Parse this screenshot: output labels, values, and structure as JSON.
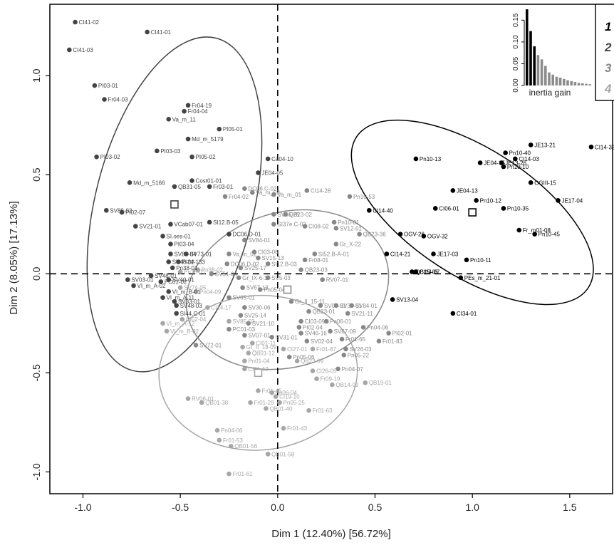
{
  "chart_data": {
    "type": "scatter",
    "title": "",
    "xlabel": "Dim 1 (12.40%) [56.72%]",
    "ylabel": "Dim 2 (8.05%) [17.13%]",
    "xlim": [
      -1.17,
      1.72
    ],
    "ylim": [
      -1.11,
      1.36
    ],
    "xticks": [
      "-1.0",
      "-0.5",
      "0.0",
      "0.5",
      "1.0",
      "1.5"
    ],
    "yticks": [
      "-1.0",
      "-0.5",
      "0.0",
      "0.5",
      "1.0"
    ],
    "xtick_values": [
      -1.0,
      -0.5,
      0.0,
      0.5,
      1.0,
      1.5
    ],
    "ytick_values": [
      -1.0,
      -0.5,
      0.0,
      0.5,
      1.0
    ],
    "reference_lines": {
      "x": 0,
      "y": 0,
      "style": "dashed"
    },
    "group_colors": {
      "1": "#000000",
      "2": "#444444",
      "3": "#888888",
      "4": "#a6a6a6"
    },
    "legend": {
      "placement": "top-right",
      "items": [
        "1",
        "2",
        "3",
        "4"
      ]
    },
    "centroids": [
      {
        "group": "1",
        "x": 1.0,
        "y": 0.31
      },
      {
        "group": "2",
        "x": -0.53,
        "y": 0.35
      },
      {
        "group": "3",
        "x": 0.05,
        "y": -0.08
      },
      {
        "group": "4",
        "x": -0.1,
        "y": -0.5
      }
    ],
    "ellipses": [
      {
        "group": "1",
        "cx": 1.0,
        "cy": 0.31,
        "rx": 0.71,
        "ry": 0.32,
        "angle": 33
      },
      {
        "group": "2",
        "cx": -0.53,
        "cy": 0.35,
        "rx": 0.88,
        "ry": 0.4,
        "angle": -76
      },
      {
        "group": "3",
        "cx": 0.05,
        "cy": -0.08,
        "rx": 0.53,
        "ry": 0.39,
        "angle": -17
      },
      {
        "group": "4",
        "cx": -0.1,
        "cy": -0.5,
        "rx": 0.51,
        "ry": 0.39,
        "angle": -4
      }
    ],
    "inset": {
      "title": "inertia gain",
      "yticks": [
        "0.00",
        "0.05",
        "0.10",
        "0.15"
      ],
      "ytick_values": [
        0,
        0.05,
        0.1,
        0.15
      ],
      "bars": [
        0.175,
        0.125,
        0.09,
        0.07,
        0.06,
        0.045,
        0.03,
        0.025,
        0.02,
        0.018,
        0.015,
        0.012,
        0.01,
        0.008,
        0.006,
        0.005,
        0.004,
        0.003
      ],
      "highlighted_count": 3
    },
    "points": [
      {
        "label": "CI14-32",
        "x": 1.61,
        "y": 0.64,
        "group": "1"
      },
      {
        "label": "JE13-21",
        "x": 1.3,
        "y": 0.65,
        "group": "1"
      },
      {
        "label": "Pn10-40",
        "x": 1.17,
        "y": 0.61,
        "group": "1"
      },
      {
        "label": "JE13-26",
        "x": 1.15,
        "y": 0.56,
        "group": "1"
      },
      {
        "label": "CI14-03",
        "x": 1.22,
        "y": 0.58,
        "group": "1"
      },
      {
        "label": "JE04-15",
        "x": 1.04,
        "y": 0.56,
        "group": "1"
      },
      {
        "label": "Pn10-10",
        "x": 1.16,
        "y": 0.54,
        "group": "1"
      },
      {
        "label": "Pn10-13",
        "x": 0.71,
        "y": 0.58,
        "group": "1"
      },
      {
        "label": "OGIII-15",
        "x": 1.3,
        "y": 0.46,
        "group": "1"
      },
      {
        "label": "JE04-13",
        "x": 0.9,
        "y": 0.42,
        "group": "1"
      },
      {
        "label": "JE17-04",
        "x": 1.44,
        "y": 0.37,
        "group": "1"
      },
      {
        "label": "Pn10-12",
        "x": 1.02,
        "y": 0.37,
        "group": "1"
      },
      {
        "label": "CI06-01",
        "x": 0.81,
        "y": 0.33,
        "group": "1"
      },
      {
        "label": "Pn10-35",
        "x": 1.16,
        "y": 0.33,
        "group": "1"
      },
      {
        "label": "CI14-40",
        "x": 0.47,
        "y": 0.32,
        "group": "1"
      },
      {
        "label": "Fr_m01-08",
        "x": 1.24,
        "y": 0.22,
        "group": "1"
      },
      {
        "label": "Pn10-45",
        "x": 1.32,
        "y": 0.2,
        "group": "1"
      },
      {
        "label": "OGV-26",
        "x": 0.63,
        "y": 0.2,
        "group": "1"
      },
      {
        "label": "OGV-32",
        "x": 0.75,
        "y": 0.19,
        "group": "1"
      },
      {
        "label": "CI14-21",
        "x": 0.56,
        "y": 0.1,
        "group": "1"
      },
      {
        "label": "JE17-03",
        "x": 0.8,
        "y": 0.1,
        "group": "1"
      },
      {
        "label": "Pn10-11",
        "x": 0.97,
        "y": 0.07,
        "group": "1"
      },
      {
        "label": "CI14-07",
        "x": 0.71,
        "y": 0.01,
        "group": "1"
      },
      {
        "label": "QB15-05",
        "x": 0.69,
        "y": 0.01,
        "group": "1"
      },
      {
        "label": "PEs_m_21-01",
        "x": 0.94,
        "y": -0.02,
        "group": "1"
      },
      {
        "label": "SV13-04",
        "x": 0.59,
        "y": -0.13,
        "group": "1"
      },
      {
        "label": "CI34-01",
        "x": 0.9,
        "y": -0.2,
        "group": "1"
      },
      {
        "label": "CI41-02",
        "x": -1.04,
        "y": 1.27,
        "group": "2"
      },
      {
        "label": "CI41-01",
        "x": -0.67,
        "y": 1.22,
        "group": "2"
      },
      {
        "label": "CI41-03",
        "x": -1.07,
        "y": 1.13,
        "group": "2"
      },
      {
        "label": "PI03-01",
        "x": -0.94,
        "y": 0.95,
        "group": "2"
      },
      {
        "label": "Fr04-03",
        "x": -0.89,
        "y": 0.88,
        "group": "2"
      },
      {
        "label": "Fr04-19",
        "x": -0.46,
        "y": 0.85,
        "group": "2"
      },
      {
        "label": "Fr04-04",
        "x": -0.48,
        "y": 0.82,
        "group": "2"
      },
      {
        "label": "Va_m_11",
        "x": -0.56,
        "y": 0.78,
        "group": "2"
      },
      {
        "label": "PI05-01",
        "x": -0.3,
        "y": 0.73,
        "group": "2"
      },
      {
        "label": "Md_m_5179",
        "x": -0.46,
        "y": 0.68,
        "group": "2"
      },
      {
        "label": "PI03-03",
        "x": -0.62,
        "y": 0.62,
        "group": "2"
      },
      {
        "label": "PI03-02",
        "x": -0.93,
        "y": 0.59,
        "group": "2"
      },
      {
        "label": "PI05-02",
        "x": -0.44,
        "y": 0.59,
        "group": "2"
      },
      {
        "label": "Ca04-10",
        "x": -0.05,
        "y": 0.58,
        "group": "2"
      },
      {
        "label": "JE04-05",
        "x": -0.1,
        "y": 0.51,
        "group": "2"
      },
      {
        "label": "Md_m_5166",
        "x": -0.76,
        "y": 0.46,
        "group": "2"
      },
      {
        "label": "Cost01-01",
        "x": -0.44,
        "y": 0.47,
        "group": "2"
      },
      {
        "label": "QB31-05",
        "x": -0.53,
        "y": 0.44,
        "group": "2"
      },
      {
        "label": "Fr03-01",
        "x": -0.35,
        "y": 0.44,
        "group": "2"
      },
      {
        "label": "SV89-02",
        "x": -0.88,
        "y": 0.32,
        "group": "2"
      },
      {
        "label": "PI02-07",
        "x": -0.8,
        "y": 0.31,
        "group": "2"
      },
      {
        "label": "SV21-01",
        "x": -0.73,
        "y": 0.24,
        "group": "2"
      },
      {
        "label": "VCab07-01",
        "x": -0.55,
        "y": 0.25,
        "group": "2"
      },
      {
        "label": "SI12.B-05",
        "x": -0.35,
        "y": 0.26,
        "group": "2"
      },
      {
        "label": "SI.oes-01",
        "x": -0.59,
        "y": 0.19,
        "group": "2"
      },
      {
        "label": "DC06.D-01",
        "x": -0.25,
        "y": 0.2,
        "group": "2"
      },
      {
        "label": "PI03-04",
        "x": -0.55,
        "y": 0.15,
        "group": "2"
      },
      {
        "label": "SV73-01",
        "x": -0.47,
        "y": 0.1,
        "group": "2"
      },
      {
        "label": "SV89-04",
        "x": -0.55,
        "y": 0.1,
        "group": "2"
      },
      {
        "label": "PI24-133",
        "x": -0.51,
        "y": 0.06,
        "group": "2"
      },
      {
        "label": "SV48-02",
        "x": -0.56,
        "y": 0.06,
        "group": "2"
      },
      {
        "label": "Pn38-01",
        "x": -0.54,
        "y": 0.03,
        "group": "2"
      },
      {
        "label": "SV48-01",
        "x": -0.65,
        "y": -0.01,
        "group": "2"
      },
      {
        "label": "SV03-01",
        "x": -0.77,
        "y": -0.03,
        "group": "2"
      },
      {
        "label": "VI_m_A-02",
        "x": -0.74,
        "y": -0.06,
        "group": "2"
      },
      {
        "label": "SV40-01",
        "x": -0.56,
        "y": -0.03,
        "group": "2"
      },
      {
        "label": "PC01-02",
        "x": -0.6,
        "y": -0.04,
        "group": "2"
      },
      {
        "label": "VI_m_B-01",
        "x": -0.56,
        "y": -0.09,
        "group": "2"
      },
      {
        "label": "VI_m_A-11",
        "x": -0.59,
        "y": -0.12,
        "group": "2"
      },
      {
        "label": "SV33-01",
        "x": -0.53,
        "y": -0.14,
        "group": "2"
      },
      {
        "label": "SV48-03",
        "x": -0.52,
        "y": -0.16,
        "group": "2"
      },
      {
        "label": "SI44.C-01",
        "x": -0.52,
        "y": -0.2,
        "group": "2"
      },
      {
        "label": "DC06.C-02",
        "x": -0.17,
        "y": 0.43,
        "group": "3"
      },
      {
        "label": "Va_m_03",
        "x": -0.13,
        "y": 0.41,
        "group": "3"
      },
      {
        "label": "Va_m_01",
        "x": -0.02,
        "y": 0.4,
        "group": "3"
      },
      {
        "label": "Fr04-02",
        "x": -0.27,
        "y": 0.39,
        "group": "3"
      },
      {
        "label": "CI14-28",
        "x": 0.15,
        "y": 0.42,
        "group": "3"
      },
      {
        "label": "Pn10-53",
        "x": 0.37,
        "y": 0.39,
        "group": "3"
      },
      {
        "label": "SV46-25",
        "x": -0.02,
        "y": 0.3,
        "group": "3"
      },
      {
        "label": "QB23-02",
        "x": 0.04,
        "y": 0.3,
        "group": "3"
      },
      {
        "label": "SI37e.C-02",
        "x": -0.02,
        "y": 0.25,
        "group": "3"
      },
      {
        "label": "CI08-02",
        "x": 0.14,
        "y": 0.24,
        "group": "3"
      },
      {
        "label": "Pn10-01",
        "x": 0.29,
        "y": 0.26,
        "group": "3"
      },
      {
        "label": "SV12-01",
        "x": 0.3,
        "y": 0.23,
        "group": "3"
      },
      {
        "label": "QB23-36",
        "x": 0.42,
        "y": 0.2,
        "group": "3"
      },
      {
        "label": "SV84-01",
        "x": -0.17,
        "y": 0.17,
        "group": "3"
      },
      {
        "label": "Gr_X-22",
        "x": 0.3,
        "y": 0.15,
        "group": "3"
      },
      {
        "label": "SI52.B-A-01",
        "x": 0.19,
        "y": 0.1,
        "group": "3"
      },
      {
        "label": "Va_m_02",
        "x": -0.25,
        "y": 0.1,
        "group": "3"
      },
      {
        "label": "CI03-06",
        "x": -0.12,
        "y": 0.11,
        "group": "3"
      },
      {
        "label": "SV15-13",
        "x": -0.1,
        "y": 0.08,
        "group": "3"
      },
      {
        "label": "Fr08-01",
        "x": 0.14,
        "y": 0.07,
        "group": "3"
      },
      {
        "label": "SI12.B-03",
        "x": -0.05,
        "y": 0.05,
        "group": "3"
      },
      {
        "label": "DC06.D-02",
        "x": -0.26,
        "y": 0.05,
        "group": "3"
      },
      {
        "label": "SV25-17",
        "x": -0.19,
        "y": 0.03,
        "group": "3"
      },
      {
        "label": "QB23-03",
        "x": 0.12,
        "y": 0.02,
        "group": "3"
      },
      {
        "label": "RV07-01",
        "x": 0.23,
        "y": -0.03,
        "group": "3"
      },
      {
        "label": "SV51-04",
        "x": -0.34,
        "y": 0.0,
        "group": "3"
      },
      {
        "label": "Gr_IX-6-1",
        "x": -0.2,
        "y": -0.02,
        "group": "3"
      },
      {
        "label": "SV5-03",
        "x": -0.05,
        "y": -0.02,
        "group": "3"
      },
      {
        "label": "SV67-13",
        "x": -0.18,
        "y": -0.07,
        "group": "3"
      },
      {
        "label": "Pn05-04",
        "x": -0.09,
        "y": -0.08,
        "group": "3"
      },
      {
        "label": "SV65-01",
        "x": -0.25,
        "y": -0.12,
        "group": "3"
      },
      {
        "label": "Gr_II_15-11",
        "x": 0.07,
        "y": -0.14,
        "group": "3"
      },
      {
        "label": "SV08-01",
        "x": 0.22,
        "y": -0.16,
        "group": "3"
      },
      {
        "label": "SV34-01",
        "x": 0.3,
        "y": -0.16,
        "group": "3"
      },
      {
        "label": "SV84-01",
        "x": 0.38,
        "y": -0.16,
        "group": "3"
      },
      {
        "label": "SV30-06",
        "x": -0.17,
        "y": -0.17,
        "group": "3"
      },
      {
        "label": "SV21-11",
        "x": 0.36,
        "y": -0.2,
        "group": "3"
      },
      {
        "label": "QB23-01",
        "x": 0.16,
        "y": -0.19,
        "group": "3"
      },
      {
        "label": "SV25-14",
        "x": -0.19,
        "y": -0.21,
        "group": "3"
      },
      {
        "label": "CI03-09",
        "x": 0.12,
        "y": -0.24,
        "group": "3"
      },
      {
        "label": "Pn06-01",
        "x": 0.25,
        "y": -0.24,
        "group": "3"
      },
      {
        "label": "SV21-10",
        "x": -0.15,
        "y": -0.25,
        "group": "3"
      },
      {
        "label": "PC01-03",
        "x": -0.25,
        "y": -0.28,
        "group": "3"
      },
      {
        "label": "PI02-04",
        "x": 0.11,
        "y": -0.27,
        "group": "3"
      },
      {
        "label": "SV67-09",
        "x": 0.27,
        "y": -0.29,
        "group": "3"
      },
      {
        "label": "Pn04-06",
        "x": 0.44,
        "y": -0.27,
        "group": "3"
      },
      {
        "label": "SV07-01",
        "x": -0.17,
        "y": -0.31,
        "group": "3"
      },
      {
        "label": "SV46-16",
        "x": 0.12,
        "y": -0.3,
        "group": "3"
      },
      {
        "label": "PI02-01",
        "x": 0.57,
        "y": -0.3,
        "group": "3"
      },
      {
        "label": "SV31-01",
        "x": -0.03,
        "y": -0.32,
        "group": "3"
      },
      {
        "label": "SV02-04",
        "x": 0.15,
        "y": -0.34,
        "group": "3"
      },
      {
        "label": "Fr01-65",
        "x": 0.33,
        "y": -0.33,
        "group": "3"
      },
      {
        "label": "Fr01-83",
        "x": 0.52,
        "y": -0.34,
        "group": "3"
      },
      {
        "label": "SV72-01",
        "x": -0.42,
        "y": -0.36,
        "group": "3"
      },
      {
        "label": "SV26-03",
        "x": 0.35,
        "y": -0.38,
        "group": "3"
      },
      {
        "label": "Pn05-22",
        "x": 0.34,
        "y": -0.41,
        "group": "3"
      },
      {
        "label": "Pn05-06",
        "x": 0.06,
        "y": -0.42,
        "group": "3"
      },
      {
        "label": "Pn04-07",
        "x": 0.31,
        "y": -0.48,
        "group": "3"
      },
      {
        "label": "Pn38-02",
        "x": -0.41,
        "y": 0.02,
        "group": "4"
      },
      {
        "label": "Pn38-01",
        "x": -0.5,
        "y": 0.01,
        "group": "4"
      },
      {
        "label": "Pn04-09",
        "x": -0.42,
        "y": -0.09,
        "group": "4"
      },
      {
        "label": "SV74-05",
        "x": -0.5,
        "y": -0.07,
        "group": "4"
      },
      {
        "label": "CI14-17",
        "x": -0.36,
        "y": -0.17,
        "group": "4"
      },
      {
        "label": "CI02-04",
        "x": -0.49,
        "y": -0.23,
        "group": "4"
      },
      {
        "label": "VI_m_A-12",
        "x": -0.59,
        "y": -0.25,
        "group": "4"
      },
      {
        "label": "SV85-03",
        "x": -0.25,
        "y": -0.24,
        "group": "4"
      },
      {
        "label": "VI_m_B-02",
        "x": -0.57,
        "y": -0.29,
        "group": "4"
      },
      {
        "label": "CI01-11",
        "x": -0.13,
        "y": -0.35,
        "group": "4"
      },
      {
        "label": "Gr_II_18-09",
        "x": -0.18,
        "y": -0.37,
        "group": "4"
      },
      {
        "label": "QB01-12",
        "x": -0.15,
        "y": -0.4,
        "group": "4"
      },
      {
        "label": "CI27-01",
        "x": 0.03,
        "y": -0.38,
        "group": "4"
      },
      {
        "label": "Fr01-87",
        "x": 0.18,
        "y": -0.38,
        "group": "4"
      },
      {
        "label": "Pn01-04",
        "x": -0.17,
        "y": -0.44,
        "group": "4"
      },
      {
        "label": "QB23-09",
        "x": 0.1,
        "y": -0.44,
        "group": "4"
      },
      {
        "label": "CI01-12",
        "x": -0.17,
        "y": -0.48,
        "group": "4"
      },
      {
        "label": "CI26-05",
        "x": 0.18,
        "y": -0.49,
        "group": "4"
      },
      {
        "label": "Fr09-19",
        "x": 0.2,
        "y": -0.53,
        "group": "4"
      },
      {
        "label": "QB14-09",
        "x": 0.28,
        "y": -0.56,
        "group": "4"
      },
      {
        "label": "QB19-01",
        "x": 0.45,
        "y": -0.55,
        "group": "4"
      },
      {
        "label": "Fr01-45",
        "x": -0.1,
        "y": -0.59,
        "group": "4"
      },
      {
        "label": "Pn06-04",
        "x": -0.03,
        "y": -0.6,
        "group": "4"
      },
      {
        "label": "CI19-10",
        "x": -0.01,
        "y": -0.62,
        "group": "4"
      },
      {
        "label": "RV06-01",
        "x": -0.46,
        "y": -0.63,
        "group": "4"
      },
      {
        "label": "QB01-38",
        "x": -0.39,
        "y": -0.65,
        "group": "4"
      },
      {
        "label": "Fr01-29",
        "x": -0.14,
        "y": -0.65,
        "group": "4"
      },
      {
        "label": "Pn05-25",
        "x": 0.01,
        "y": -0.65,
        "group": "4"
      },
      {
        "label": "QB01-40",
        "x": -0.06,
        "y": -0.68,
        "group": "4"
      },
      {
        "label": "Fr01-63",
        "x": 0.16,
        "y": -0.69,
        "group": "4"
      },
      {
        "label": "Fr01-43",
        "x": 0.03,
        "y": -0.78,
        "group": "4"
      },
      {
        "label": "Pn04-06",
        "x": -0.31,
        "y": -0.79,
        "group": "4"
      },
      {
        "label": "Fr01-53",
        "x": -0.3,
        "y": -0.84,
        "group": "4"
      },
      {
        "label": "QB01-56",
        "x": -0.24,
        "y": -0.87,
        "group": "4"
      },
      {
        "label": "QB01-58",
        "x": -0.05,
        "y": -0.91,
        "group": "4"
      },
      {
        "label": "Fr01-61",
        "x": -0.25,
        "y": -1.01,
        "group": "4"
      }
    ]
  }
}
